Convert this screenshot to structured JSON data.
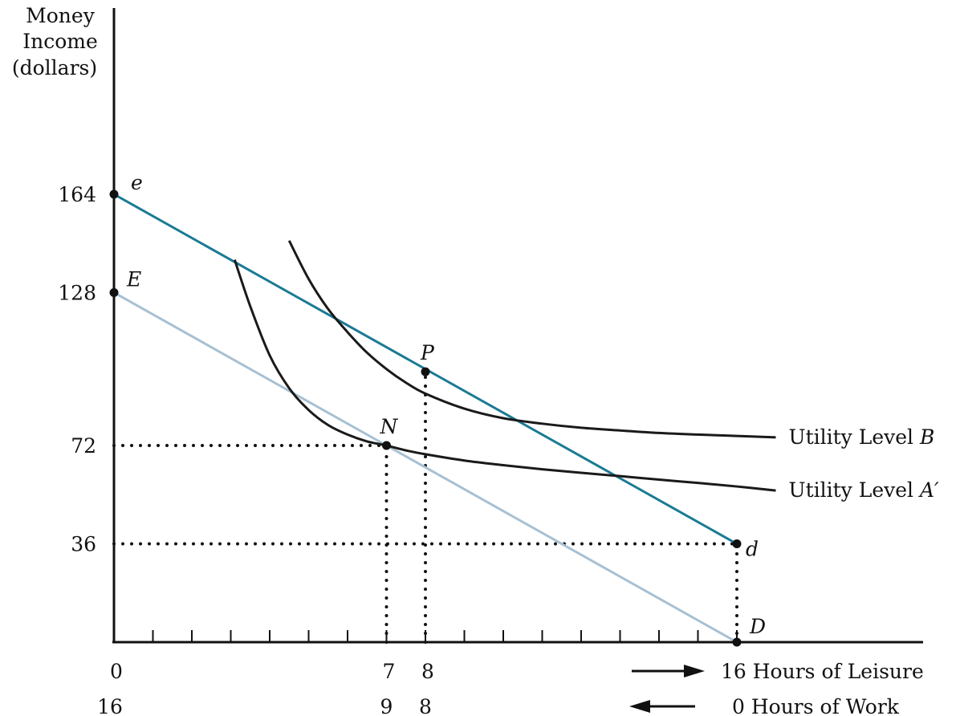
{
  "chart_data": {
    "type": "line",
    "title": "",
    "ylabel_lines": [
      "Money",
      "Income",
      "(dollars)"
    ],
    "xlabel_leisure": "16 Hours of Leisure",
    "xlabel_work": "0 Hours of Work",
    "xlim": [
      0,
      16
    ],
    "ylim": [
      0,
      164
    ],
    "y_ticks": [
      {
        "value": 164,
        "label": "164"
      },
      {
        "value": 128,
        "label": "128"
      },
      {
        "value": 72,
        "label": "72"
      },
      {
        "value": 36,
        "label": "36"
      }
    ],
    "x_ticks_minor": [
      1,
      2,
      3,
      4,
      5,
      6,
      7,
      8,
      9,
      10,
      11,
      12,
      13,
      14,
      15,
      16
    ],
    "x_tick_labels_leisure": [
      {
        "value": 0,
        "label": "0"
      },
      {
        "value": 7,
        "label": "7"
      },
      {
        "value": 8,
        "label": "8"
      }
    ],
    "x_tick_labels_work": [
      {
        "value": 0,
        "label": "16"
      },
      {
        "value": 7,
        "label": "9"
      },
      {
        "value": 8,
        "label": "8"
      }
    ],
    "budget_lines": [
      {
        "label_start": "e",
        "label_end": "d",
        "color": "#1a7a94",
        "points": [
          [
            0,
            164
          ],
          [
            16,
            36
          ]
        ]
      },
      {
        "label_start": "E",
        "label_end": "D",
        "color": "#a8c0d2",
        "points": [
          [
            0,
            128
          ],
          [
            16,
            0
          ]
        ]
      }
    ],
    "indifference_curves": [
      {
        "name": "Utility Level B",
        "color": "#1a1a1a",
        "points": [
          [
            4.5,
            147
          ],
          [
            5,
            133
          ],
          [
            5.5,
            122
          ],
          [
            6,
            113.5
          ],
          [
            6.5,
            106
          ],
          [
            7,
            100
          ],
          [
            7.5,
            95
          ],
          [
            8,
            91
          ],
          [
            9,
            85.5
          ],
          [
            10,
            82
          ],
          [
            11,
            80
          ],
          [
            12,
            78.5
          ],
          [
            13,
            77.5
          ],
          [
            14,
            76.6
          ],
          [
            15,
            76
          ],
          [
            16,
            75.5
          ],
          [
            17,
            75
          ]
        ]
      },
      {
        "name": "Utility Level A′",
        "color": "#1a1a1a",
        "points": [
          [
            3.1,
            140
          ],
          [
            3.5,
            123
          ],
          [
            4,
            105
          ],
          [
            4.5,
            93
          ],
          [
            5,
            85
          ],
          [
            5.5,
            79.5
          ],
          [
            6,
            76
          ],
          [
            6.5,
            73.5
          ],
          [
            7,
            72
          ],
          [
            7.5,
            70.2
          ],
          [
            8,
            68.8
          ],
          [
            9,
            66.5
          ],
          [
            10,
            64.8
          ],
          [
            11,
            63.3
          ],
          [
            12,
            62
          ],
          [
            13,
            60.8
          ],
          [
            14,
            59.5
          ],
          [
            15,
            58.3
          ],
          [
            16,
            57
          ],
          [
            17,
            55.5
          ]
        ]
      }
    ],
    "points": [
      {
        "name": "e",
        "x": 0,
        "y": 164
      },
      {
        "name": "E",
        "x": 0,
        "y": 128
      },
      {
        "name": "P",
        "x": 8,
        "y": 99
      },
      {
        "name": "N",
        "x": 7,
        "y": 72
      },
      {
        "name": "d",
        "x": 16,
        "y": 36
      },
      {
        "name": "D",
        "x": 16,
        "y": 0
      }
    ],
    "guides": [
      {
        "type": "h",
        "y": 72,
        "x_from": 0,
        "x_to": 7
      },
      {
        "type": "h",
        "y": 36,
        "x_from": 0,
        "x_to": 16
      },
      {
        "type": "v",
        "x": 7,
        "y_from": 0,
        "y_to": 72
      },
      {
        "type": "v",
        "x": 8,
        "y_from": 0,
        "y_to": 99
      },
      {
        "type": "v",
        "x": 16,
        "y_from": 0,
        "y_to": 36
      }
    ],
    "grid": false,
    "legend": "none"
  }
}
